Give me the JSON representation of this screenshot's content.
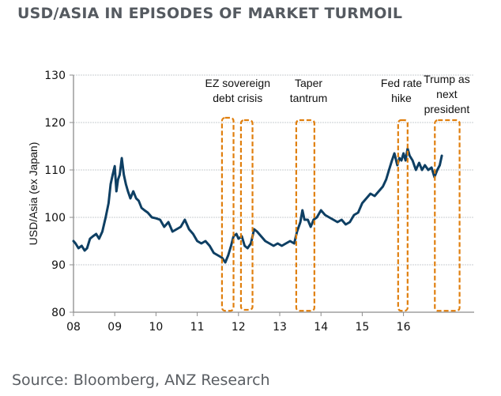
{
  "title": "USD/ASIA IN EPISODES OF MARKET TURMOIL",
  "source": "Source: Bloomberg, ANZ Research",
  "colors": {
    "series": "#0e3f63",
    "episode_box": "#e07f0e",
    "gridline": "#c9ccd2",
    "axis": "#8c8c8c",
    "title": "#555a60"
  },
  "chart_data": {
    "type": "line",
    "title": "USD/ASIA IN EPISODES OF MARKET TURMOIL",
    "xlabel": "",
    "ylabel": "USD/Asia (ex Japan)",
    "xlim": [
      2008,
      2017.45
    ],
    "ylim": [
      80,
      130
    ],
    "grid": true,
    "x_tick_values": [
      2008,
      2009,
      2010,
      2011,
      2012,
      2013,
      2014,
      2015,
      2016
    ],
    "x_tick_labels": [
      "08",
      "09",
      "10",
      "11",
      "12",
      "13",
      "14",
      "15",
      "16"
    ],
    "y_ticks": [
      80,
      90,
      100,
      110,
      120,
      130
    ],
    "series": [
      {
        "name": "USD/Asia (ex Japan)",
        "x": [
          2008.0,
          2008.05,
          2008.12,
          2008.2,
          2008.27,
          2008.33,
          2008.4,
          2008.47,
          2008.55,
          2008.62,
          2008.7,
          2008.78,
          2008.85,
          2008.9,
          2008.95,
          2009.0,
          2009.04,
          2009.08,
          2009.12,
          2009.17,
          2009.22,
          2009.27,
          2009.32,
          2009.38,
          2009.45,
          2009.52,
          2009.58,
          2009.65,
          2009.72,
          2009.8,
          2009.9,
          2010.0,
          2010.1,
          2010.2,
          2010.3,
          2010.4,
          2010.5,
          2010.6,
          2010.7,
          2010.8,
          2010.9,
          2011.0,
          2011.1,
          2011.2,
          2011.3,
          2011.4,
          2011.5,
          2011.6,
          2011.68,
          2011.75,
          2011.82,
          2011.88,
          2011.95,
          2012.0,
          2012.08,
          2012.15,
          2012.22,
          2012.3,
          2012.38,
          2012.45,
          2012.55,
          2012.65,
          2012.75,
          2012.85,
          2012.95,
          2013.05,
          2013.15,
          2013.25,
          2013.35,
          2013.42,
          2013.5,
          2013.55,
          2013.6,
          2013.68,
          2013.75,
          2013.82,
          2013.9,
          2014.0,
          2014.1,
          2014.2,
          2014.3,
          2014.4,
          2014.5,
          2014.6,
          2014.7,
          2014.8,
          2014.9,
          2015.0,
          2015.1,
          2015.2,
          2015.3,
          2015.4,
          2015.5,
          2015.58,
          2015.65,
          2015.72,
          2015.78,
          2015.85,
          2015.9,
          2015.95,
          2016.0,
          2016.05,
          2016.1,
          2016.15,
          2016.22,
          2016.3,
          2016.38,
          2016.45,
          2016.52,
          2016.6,
          2016.68,
          2016.75,
          2016.82,
          2016.88,
          2016.93
        ],
        "values": [
          95.0,
          94.5,
          93.5,
          94.0,
          93.0,
          93.5,
          95.5,
          96.0,
          96.5,
          95.5,
          97.0,
          100.0,
          103.0,
          107.0,
          109.0,
          110.8,
          105.5,
          108.0,
          109.0,
          112.5,
          109.0,
          107.0,
          105.5,
          104.0,
          105.5,
          104.0,
          103.5,
          102.0,
          101.5,
          101.0,
          100.0,
          99.8,
          99.5,
          98.0,
          99.0,
          97.0,
          97.5,
          98.0,
          99.5,
          97.5,
          96.5,
          95.0,
          94.5,
          95.0,
          94.0,
          92.5,
          92.0,
          91.5,
          90.5,
          92.0,
          94.0,
          96.0,
          96.5,
          95.5,
          96.0,
          94.0,
          93.5,
          94.5,
          97.5,
          97.0,
          96.0,
          95.0,
          94.5,
          94.0,
          94.5,
          94.0,
          94.5,
          95.0,
          94.5,
          97.0,
          99.0,
          101.5,
          99.5,
          99.5,
          98.0,
          99.5,
          100.0,
          101.5,
          100.5,
          100.0,
          99.5,
          99.0,
          99.5,
          98.5,
          99.0,
          100.5,
          101.0,
          103.0,
          104.0,
          105.0,
          104.5,
          105.5,
          106.5,
          108.0,
          110.0,
          112.0,
          113.5,
          111.0,
          112.5,
          112.0,
          113.5,
          112.0,
          114.5,
          113.0,
          112.0,
          110.0,
          111.5,
          110.0,
          111.0,
          110.0,
          110.5,
          108.5,
          110.0,
          111.0,
          113.0
        ]
      }
    ],
    "episodes": [
      {
        "label": "EZ sovereign debt crisis",
        "x_start": 2011.6,
        "x_end": 2011.88,
        "y_top": 121,
        "y_bottom": 80.3
      },
      {
        "label": "",
        "x_start": 2012.06,
        "x_end": 2012.34,
        "y_top": 120.5,
        "y_bottom": 80.5
      },
      {
        "label": "Taper tantrum",
        "x_start": 2013.4,
        "x_end": 2013.84,
        "y_top": 120.5,
        "y_bottom": 80.3
      },
      {
        "label": "Fed rate hike",
        "x_start": 2015.87,
        "x_end": 2016.1,
        "y_top": 120.5,
        "y_bottom": 80.3
      },
      {
        "label": "Trump as next president",
        "x_start": 2016.76,
        "x_end": 2017.36,
        "y_top": 120.5,
        "y_bottom": 80.3
      }
    ],
    "annotations": [
      {
        "lines": [
          "EZ sovereign",
          "debt crisis"
        ],
        "x": 2011.98
      },
      {
        "lines": [
          "Taper",
          "tantrum"
        ],
        "x": 2013.7
      },
      {
        "lines": [
          "Fed rate",
          "hike"
        ],
        "x": 2015.95
      },
      {
        "lines": [
          "Trump as",
          "next",
          "president"
        ],
        "x": 2017.05
      }
    ]
  }
}
